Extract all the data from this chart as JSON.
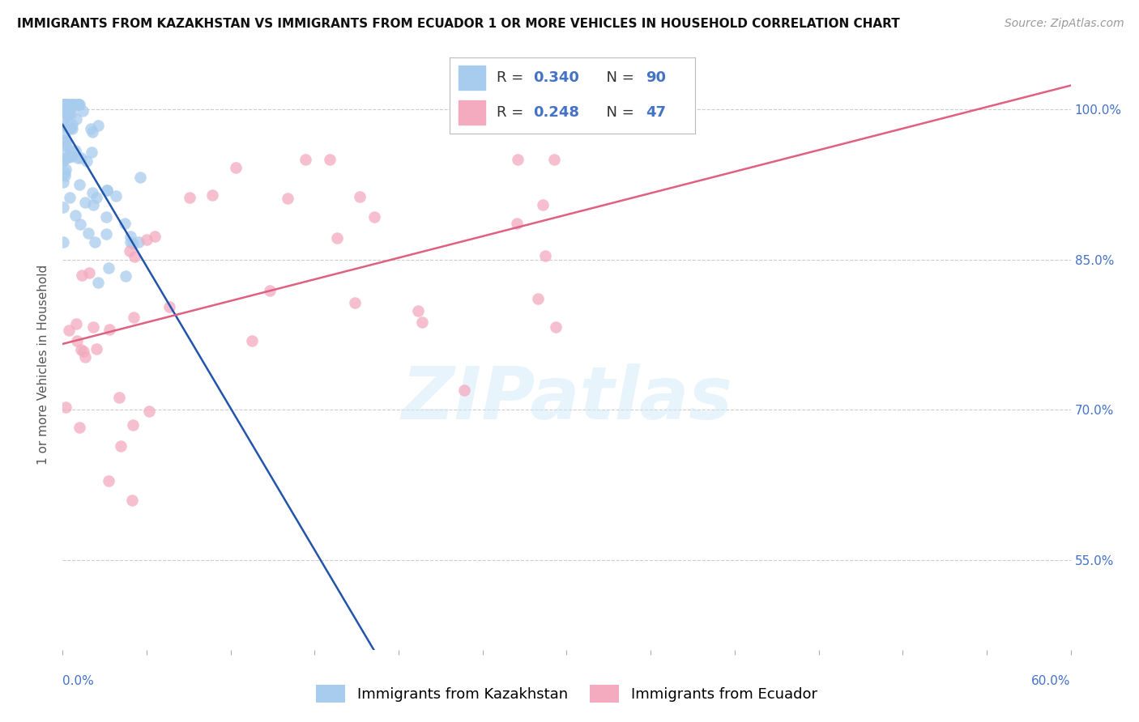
{
  "title": "IMMIGRANTS FROM KAZAKHSTAN VS IMMIGRANTS FROM ECUADOR 1 OR MORE VEHICLES IN HOUSEHOLD CORRELATION CHART",
  "source": "Source: ZipAtlas.com",
  "ylabel": "1 or more Vehicles in Household",
  "legend_label1": "Immigrants from Kazakhstan",
  "legend_label2": "Immigrants from Ecuador",
  "R1": 0.34,
  "N1": 90,
  "R2": 0.248,
  "N2": 47,
  "color1": "#A8CCEE",
  "color2": "#F4AABF",
  "line_color1": "#2255AA",
  "line_color2": "#E06080",
  "xmin": 0.0,
  "xmax": 60.0,
  "ymin": 46.0,
  "ymax": 103.0,
  "ytick_vals": [
    55.0,
    70.0,
    85.0,
    100.0
  ],
  "xtick_only_ends": true,
  "x_left_label": "0.0%",
  "x_right_label": "60.0%",
  "n_minor_xticks": 11,
  "background": "#FFFFFF",
  "title_fontsize": 11,
  "axis_label_fontsize": 11,
  "tick_fontsize": 11,
  "legend_fontsize": 13,
  "source_fontsize": 10,
  "text_blue": "#4472C4",
  "watermark_text": "ZIPatlas",
  "watermark_fontsize": 65,
  "watermark_color": "#D0EAF8",
  "watermark_alpha": 0.5
}
